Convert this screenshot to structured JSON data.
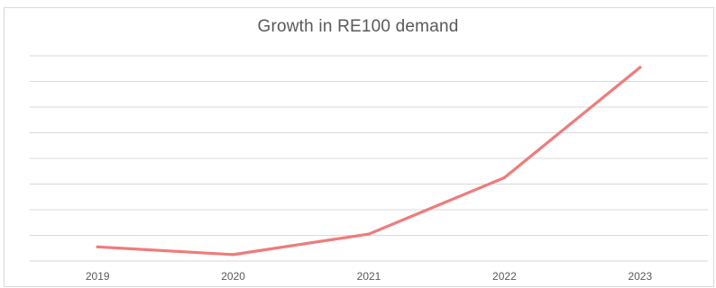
{
  "chart_data": {
    "type": "line",
    "title": "Growth in RE100 demand",
    "xlabel": "",
    "ylabel": "",
    "categories": [
      "2019",
      "2020",
      "2021",
      "2022",
      "2023"
    ],
    "series": [
      {
        "values": [
          0.55,
          0.25,
          1.05,
          3.25,
          7.55
        ]
      }
    ],
    "ylim": [
      0,
      8
    ],
    "grid": true,
    "legend": "none",
    "colors": {
      "line": "#f07b7b",
      "grid": "#d9d9d9",
      "text": "#595959"
    }
  }
}
